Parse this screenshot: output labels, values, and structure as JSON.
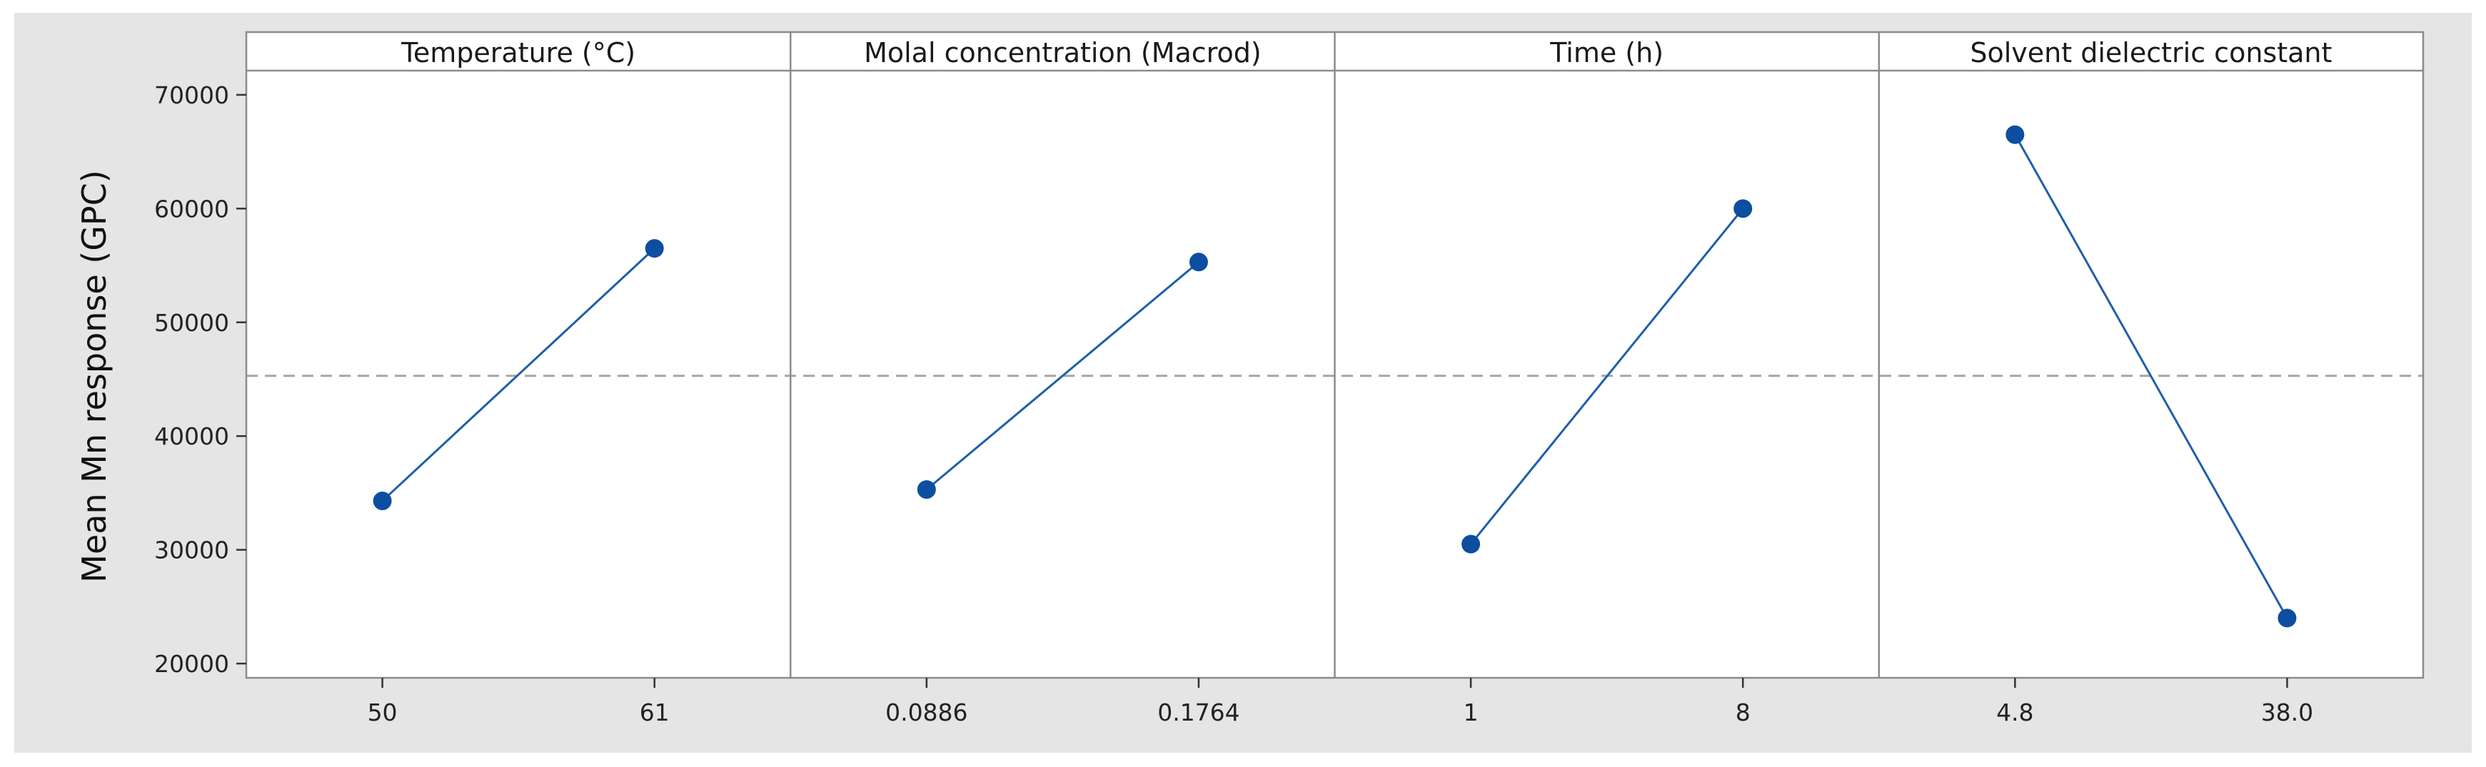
{
  "chart_data": {
    "type": "line",
    "ylabel": "Mean Mn response (GPC)",
    "ylim": [
      19500,
      71500
    ],
    "yticks": [
      20000,
      30000,
      40000,
      50000,
      60000,
      70000
    ],
    "reference_line": 45300,
    "grid": false,
    "colors": {
      "series": "#1f5fa8",
      "marker": "#0c4ea0",
      "reference": "#a6a6a6",
      "panel_border": "#8c8c8c",
      "background": "#e5e5e5"
    },
    "panels": [
      {
        "title": "Temperature (°C)",
        "categories": [
          "50",
          "61"
        ],
        "values": [
          34300,
          56500
        ]
      },
      {
        "title": "Molal concentration (Macrod)",
        "categories": [
          "0.0886",
          "0.1764"
        ],
        "values": [
          35300,
          55300
        ]
      },
      {
        "title": "Time (h)",
        "categories": [
          "1",
          "8"
        ],
        "values": [
          30500,
          60000
        ]
      },
      {
        "title": "Solvent dielectric constant",
        "categories": [
          "4.8",
          "38.0"
        ],
        "values": [
          66500,
          24000
        ]
      }
    ]
  }
}
